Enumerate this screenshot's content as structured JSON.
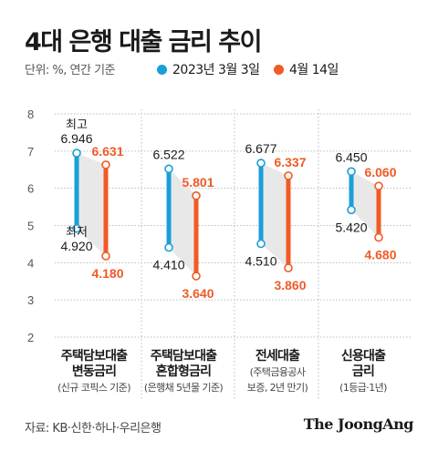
{
  "title": "4대 은행 대출 금리 추이",
  "unit_label": "단위: %, 연간 기준",
  "source": "자료: KB·신한·하나·우리은행",
  "publisher": "The JoongAng",
  "colors": {
    "blue": "#1a9fd8",
    "orange": "#f05a24",
    "shade": "#e8e8e8",
    "grid": "#bdbdbd"
  },
  "chart_data": {
    "type": "range-bar",
    "ylim": [
      2,
      8
    ],
    "yticks": [
      "2",
      "3",
      "4",
      "5",
      "6",
      "7",
      "8"
    ],
    "series": [
      {
        "name": "2023년 3월 3일",
        "color": "#1a9fd8"
      },
      {
        "name": "4월 14일",
        "color": "#f05a24"
      }
    ],
    "high_label": "최고",
    "low_label": "최저",
    "categories": [
      {
        "line1": "주택담보대출",
        "line2": "변동금리",
        "note": "(신규 코픽스 기준)",
        "s1_high": 6.946,
        "s1_low": 4.92,
        "s2_high": 6.631,
        "s2_low": 4.18,
        "s1_high_label": "6.946",
        "s1_low_label": "4.920",
        "s2_high_label": "6.631",
        "s2_low_label": "4.180"
      },
      {
        "line1": "주택담보대출",
        "line2": "혼합형금리",
        "note": "(은행채 5년물 기준)",
        "s1_high": 6.522,
        "s1_low": 4.41,
        "s2_high": 5.801,
        "s2_low": 3.64,
        "s1_high_label": "6.522",
        "s1_low_label": "4.410",
        "s2_high_label": "5.801",
        "s2_low_label": "3.640"
      },
      {
        "line1": "전세대출",
        "line2": "",
        "note": "(주택금융공사",
        "note2": "보증, 2년 만기)",
        "s1_high": 6.677,
        "s1_low": 4.51,
        "s2_high": 6.337,
        "s2_low": 3.86,
        "s1_high_label": "6.677",
        "s1_low_label": "4.510",
        "s2_high_label": "6.337",
        "s2_low_label": "3.860"
      },
      {
        "line1": "신용대출",
        "line2": "금리",
        "note": "(1등급·1년)",
        "s1_high": 6.45,
        "s1_low": 5.42,
        "s2_high": 6.06,
        "s2_low": 4.68,
        "s1_high_label": "6.450",
        "s1_low_label": "5.420",
        "s2_high_label": "6.060",
        "s2_low_label": "4.680"
      }
    ]
  }
}
